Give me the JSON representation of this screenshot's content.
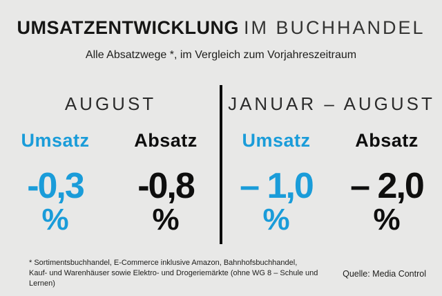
{
  "title": {
    "emphasis": "UMSATZENTWICKLUNG",
    "rest": "IM BUCHHANDEL"
  },
  "subtitle": "Alle Absatzwege *, im Vergleich zum Vorjahreszeitraum",
  "colors": {
    "accent_blue": "#1a9cd9",
    "text_dark": "#0e0e0e",
    "background": "#e8e8e7"
  },
  "panels": [
    {
      "period": "AUGUST",
      "metrics": [
        {
          "label": "Umsatz",
          "value": "-0,3",
          "unit": "%",
          "color": "blue"
        },
        {
          "label": "Absatz",
          "value": "-0,8",
          "unit": "%",
          "color": "black"
        }
      ]
    },
    {
      "period": "JANUAR – AUGUST",
      "metrics": [
        {
          "label": "Umsatz",
          "value": "– 1,0",
          "unit": "%",
          "color": "blue"
        },
        {
          "label": "Absatz",
          "value": "– 2,0",
          "unit": "%",
          "color": "black"
        }
      ]
    }
  ],
  "footnote": {
    "line1": "* Sortimentsbuchhandel, E-Commerce inklusive Amazon, Bahnhofsbuchhandel,",
    "line2": "Kauf- und Warenhäuser sowie Elektro- und Drogeriemärkte (ohne WG 8 – Schule und Lernen)"
  },
  "source": "Quelle: Media Control",
  "chart_data": {
    "type": "table",
    "title": "UMSATZENTWICKLUNG IM BUCHHANDEL",
    "subtitle": "Alle Absatzwege *, im Vergleich zum Vorjahreszeitraum",
    "categories": [
      "August",
      "Januar – August"
    ],
    "series": [
      {
        "name": "Umsatz",
        "values": [
          -0.3,
          -1.0
        ]
      },
      {
        "name": "Absatz",
        "values": [
          -0.8,
          -2.0
        ]
      }
    ],
    "unit": "%",
    "source": "Media Control"
  }
}
